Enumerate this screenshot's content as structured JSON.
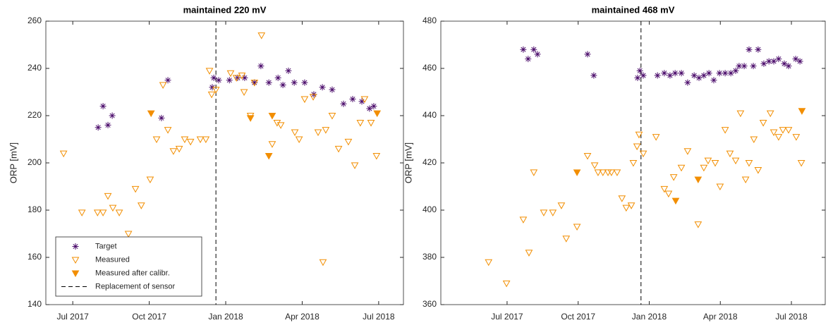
{
  "chart_data": [
    {
      "type": "scatter",
      "title": "maintained 220 mV",
      "ylabel": "ORP [mV]",
      "xlim": [
        2017.412,
        2018.581
      ],
      "ylim": [
        140,
        260
      ],
      "xticks": [
        {
          "value": 2017.5,
          "label": "Jul 2017"
        },
        {
          "value": 2017.75,
          "label": "Oct 2017"
        },
        {
          "value": 2018.0,
          "label": "Jan 2018"
        },
        {
          "value": 2018.25,
          "label": "Apr 2018"
        },
        {
          "value": 2018.5,
          "label": "Jul 2018"
        }
      ],
      "yticks": [
        140,
        160,
        180,
        200,
        220,
        240,
        260
      ],
      "legend": "lower left",
      "series": [
        {
          "name": "Target",
          "color": "#4b0c6b",
          "marker": "asterisk",
          "x": [
            2017.583,
            2017.599,
            2017.615,
            2017.629,
            2017.79,
            2017.811,
            2017.956,
            2017.961,
            2017.977,
            2018.012,
            2018.039,
            2018.062,
            2018.094,
            2018.115,
            2018.141,
            2018.171,
            2018.187,
            2018.205,
            2018.224,
            2018.258,
            2018.288,
            2018.316,
            2018.348,
            2018.385,
            2018.415,
            2018.445,
            2018.47,
            2018.484
          ],
          "values": [
            215,
            224,
            216,
            220,
            219,
            235,
            232,
            236,
            235,
            235,
            236,
            236,
            234,
            241,
            234,
            236,
            233,
            239,
            234,
            234,
            229,
            232,
            231,
            225,
            227,
            226,
            223,
            224
          ]
        },
        {
          "name": "Measured",
          "color": "#f28e00",
          "marker": "triangle-open",
          "x": [
            2017.47,
            2017.53,
            2017.581,
            2017.599,
            2017.615,
            2017.631,
            2017.652,
            2017.682,
            2017.705,
            2017.724,
            2017.753,
            2017.774,
            2017.795,
            2017.811,
            2017.829,
            2017.848,
            2017.866,
            2017.885,
            2017.917,
            2017.935,
            2017.947,
            2017.954,
            2017.968,
            2018.016,
            2018.035,
            2018.053,
            2018.06,
            2018.081,
            2018.094,
            2018.117,
            2018.152,
            2018.168,
            2018.18,
            2018.226,
            2018.24,
            2018.258,
            2018.286,
            2018.302,
            2018.318,
            2018.327,
            2018.348,
            2018.369,
            2018.401,
            2018.422,
            2018.44,
            2018.454,
            2018.475,
            2018.493
          ],
          "values": [
            204,
            179,
            179,
            179,
            186,
            181,
            179,
            170,
            189,
            182,
            193,
            210,
            233,
            214,
            205,
            206,
            210,
            209,
            210,
            210,
            239,
            229,
            231,
            238,
            236,
            237,
            230,
            220,
            234,
            254,
            208,
            217,
            216,
            213,
            210,
            227,
            228,
            213,
            158,
            214,
            220,
            206,
            209,
            199,
            217,
            227,
            217,
            203
          ]
        },
        {
          "name": "Measured after calibr.",
          "color": "#f28e00",
          "marker": "triangle-filled",
          "x": [
            2017.756,
            2018.081,
            2018.141,
            2018.152,
            2018.495
          ],
          "values": [
            221,
            219,
            203,
            220,
            221
          ]
        }
      ],
      "vline": {
        "x": 2017.968,
        "name": "Replacement of sensor",
        "color": "#000000"
      }
    },
    {
      "type": "scatter",
      "title": "maintained 468 mV",
      "ylabel": "ORP [mV]",
      "xlim": [
        2017.267,
        2018.619
      ],
      "ylim": [
        360,
        480
      ],
      "xticks": [
        {
          "value": 2017.5,
          "label": "Jul 2017"
        },
        {
          "value": 2017.75,
          "label": "Oct 2017"
        },
        {
          "value": 2018.0,
          "label": "Jan 2018"
        },
        {
          "value": 2018.25,
          "label": "Apr 2018"
        },
        {
          "value": 2018.5,
          "label": "Jul 2018"
        }
      ],
      "yticks": [
        360,
        380,
        400,
        420,
        440,
        460,
        480
      ],
      "series": [
        {
          "color": "#4b0c6b",
          "marker": "asterisk",
          "x": [
            2017.557,
            2017.574,
            2017.594,
            2017.607,
            2017.783,
            2017.805,
            2017.959,
            2017.967,
            2017.979,
            2018.029,
            2018.053,
            2018.073,
            2018.091,
            2018.113,
            2018.135,
            2018.158,
            2018.175,
            2018.192,
            2018.21,
            2018.227,
            2018.247,
            2018.267,
            2018.287,
            2018.304,
            2018.316,
            2018.334,
            2018.351,
            2018.366,
            2018.383,
            2018.403,
            2018.421,
            2018.438,
            2018.455,
            2018.475,
            2018.49,
            2018.515,
            2018.53
          ],
          "values": [
            468,
            464,
            468,
            466,
            466,
            457,
            456,
            459,
            457,
            457,
            458,
            457,
            458,
            458,
            454,
            457,
            456,
            457,
            458,
            455,
            458,
            458,
            458,
            459,
            461,
            461,
            468,
            461,
            468,
            462,
            463,
            463,
            464,
            462,
            461,
            464,
            463
          ]
        },
        {
          "color": "#f28e00",
          "marker": "triangle-open",
          "x": [
            2017.435,
            2017.498,
            2017.557,
            2017.577,
            2017.594,
            2017.629,
            2017.661,
            2017.691,
            2017.708,
            2017.746,
            2017.783,
            2017.808,
            2017.82,
            2017.837,
            2017.855,
            2017.867,
            2017.887,
            2017.904,
            2017.919,
            2017.937,
            2017.944,
            2017.957,
            2017.964,
            2017.979,
            2018.024,
            2018.053,
            2018.068,
            2018.086,
            2018.113,
            2018.135,
            2018.172,
            2018.192,
            2018.207,
            2018.232,
            2018.249,
            2018.267,
            2018.284,
            2018.304,
            2018.321,
            2018.339,
            2018.351,
            2018.368,
            2018.383,
            2018.401,
            2018.426,
            2018.438,
            2018.455,
            2018.47,
            2018.49,
            2018.517,
            2018.535
          ],
          "values": [
            378,
            369,
            396,
            382,
            416,
            399,
            399,
            402,
            388,
            393,
            423,
            419,
            416,
            416,
            416,
            416,
            416,
            405,
            401,
            402,
            420,
            427,
            432,
            424,
            431,
            409,
            407,
            414,
            418,
            425,
            394,
            418,
            421,
            420,
            410,
            434,
            424,
            421,
            441,
            413,
            420,
            430,
            417,
            437,
            441,
            433,
            431,
            434,
            434,
            431,
            420
          ]
        },
        {
          "color": "#f28e00",
          "marker": "triangle-filled",
          "x": [
            2017.746,
            2018.093,
            2018.172,
            2018.537
          ],
          "values": [
            416,
            404,
            413,
            442
          ]
        }
      ],
      "vline": {
        "x": 2017.971,
        "color": "#000000"
      }
    }
  ]
}
